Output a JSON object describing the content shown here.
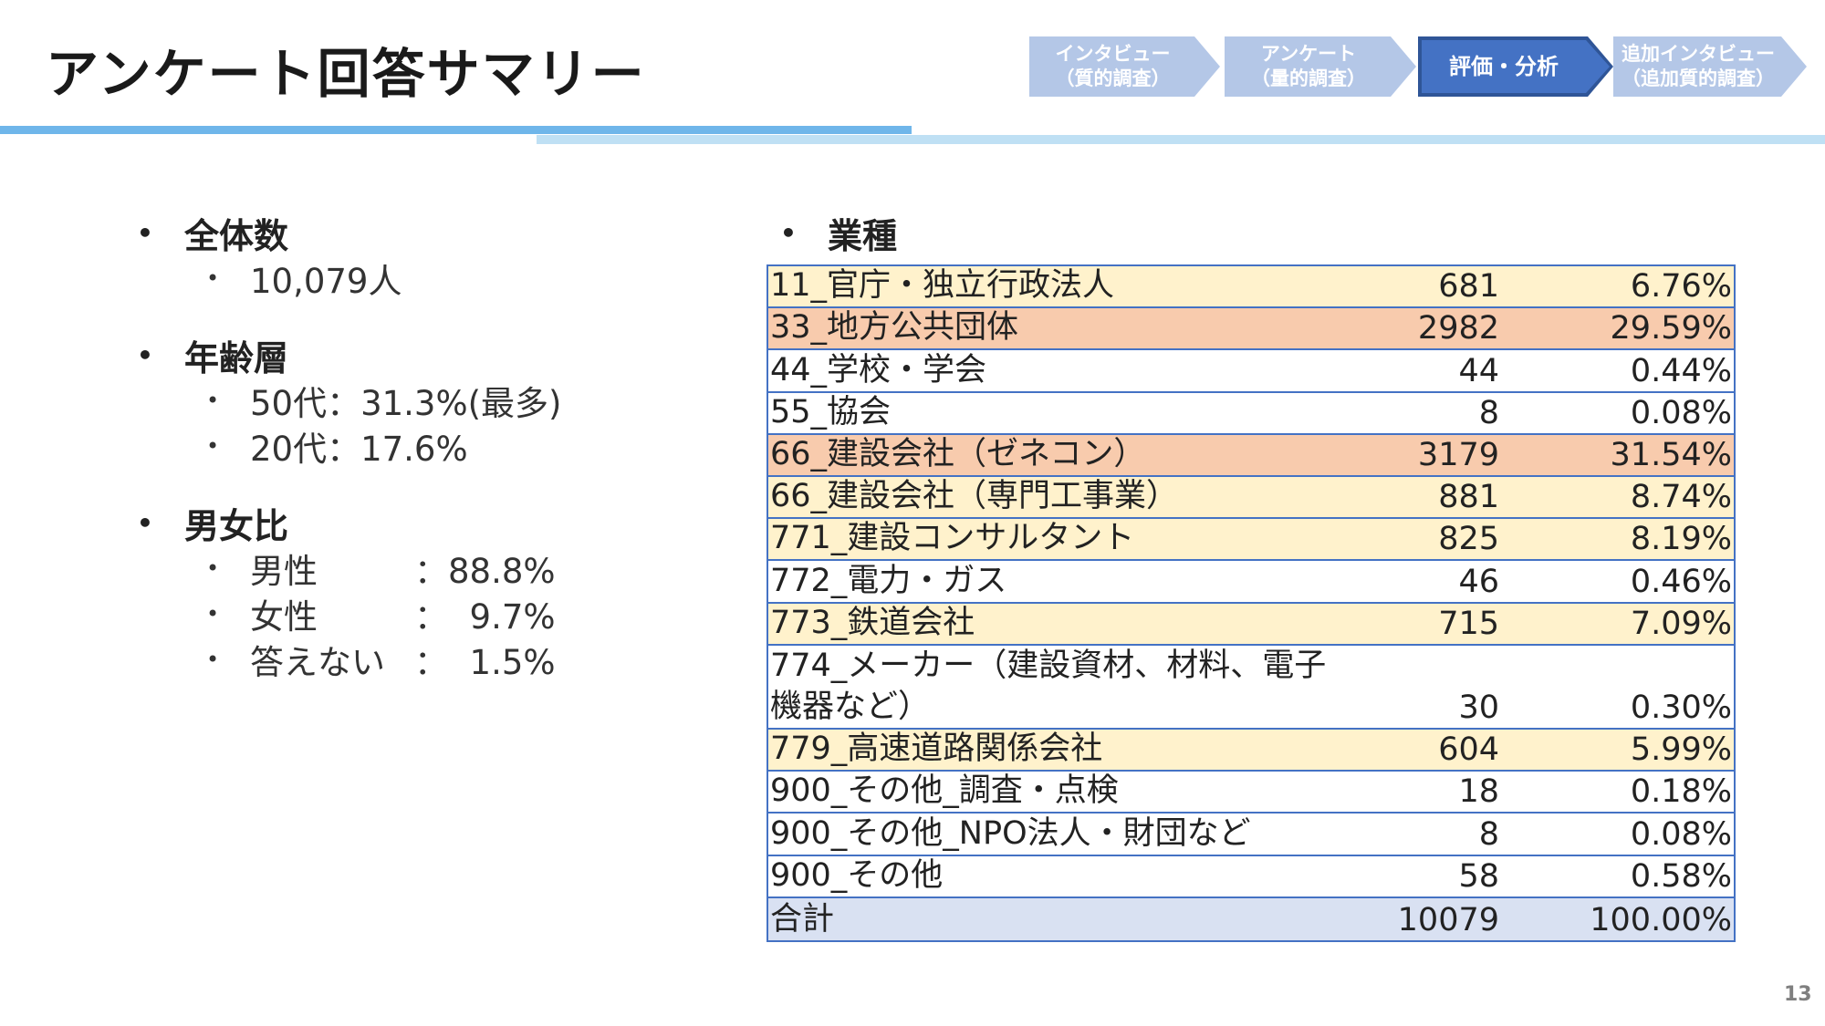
{
  "title": "アンケート回答サマリー",
  "steps": [
    {
      "line1": "インタビュー",
      "line2": "（質的調査）",
      "active": false
    },
    {
      "line1": "アンケート",
      "line2": "（量的調査）",
      "active": false
    },
    {
      "line1": "評価・分析",
      "line2": "",
      "active": true
    },
    {
      "line1": "追加インタビュー",
      "line2": "（追加質的調査）",
      "active": false
    }
  ],
  "summary": {
    "total": {
      "heading": "全体数",
      "items": [
        "10,079人"
      ]
    },
    "age": {
      "heading": "年齢層",
      "items": [
        "50代：31.3%(最多)",
        "20代：17.6%"
      ]
    },
    "gender": {
      "heading": "男女比",
      "items": [
        {
          "label": "男性",
          "value": "：88.8%"
        },
        {
          "label": "女性",
          "value": "：  9.7%"
        },
        {
          "label": "答えない",
          "value": "：  1.5%"
        }
      ]
    }
  },
  "industry": {
    "heading": "業種",
    "rows": [
      {
        "name": "11_官庁・独立行政法人",
        "count": "681",
        "pct": "6.76%",
        "color": "y"
      },
      {
        "name": "33_地方公共団体",
        "count": "2982",
        "pct": "29.59%",
        "color": "o"
      },
      {
        "name": "44_学校・学会",
        "count": "44",
        "pct": "0.44%",
        "color": "w"
      },
      {
        "name": "55_協会",
        "count": "8",
        "pct": "0.08%",
        "color": "w"
      },
      {
        "name": "66_建設会社（ゼネコン）",
        "count": "3179",
        "pct": "31.54%",
        "color": "o"
      },
      {
        "name": "66_建設会社（専門工事業）",
        "count": "881",
        "pct": "8.74%",
        "color": "y"
      },
      {
        "name": "771_建設コンサルタント",
        "count": "825",
        "pct": "8.19%",
        "color": "y"
      },
      {
        "name": "772_電力・ガス",
        "count": "46",
        "pct": "0.46%",
        "color": "w"
      },
      {
        "name": "773_鉄道会社",
        "count": "715",
        "pct": "7.09%",
        "color": "y"
      },
      {
        "name": "774_メーカー（建設資材、材料、電子\n機器など）",
        "count": "30",
        "pct": "0.30%",
        "color": "w",
        "tall": true
      },
      {
        "name": "779_高速道路関係会社",
        "count": "604",
        "pct": "5.99%",
        "color": "y"
      },
      {
        "name": "900_その他_調査・点検",
        "count": "18",
        "pct": "0.18%",
        "color": "w"
      },
      {
        "name": "900_その他_NPO法人・財団など",
        "count": "8",
        "pct": "0.08%",
        "color": "w"
      },
      {
        "name": "900_その他",
        "count": "58",
        "pct": "0.58%",
        "color": "w"
      },
      {
        "name": "合計",
        "count": "10079",
        "pct": "100.00%",
        "color": "t"
      }
    ]
  },
  "page_number": "13"
}
